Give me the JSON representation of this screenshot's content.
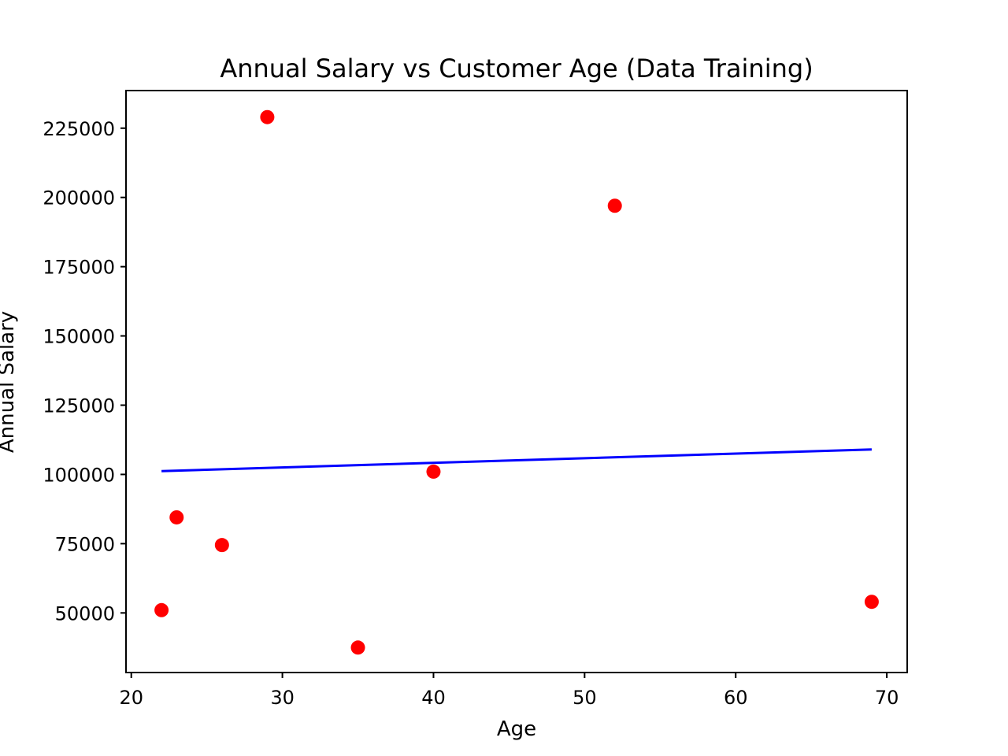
{
  "chart_data": {
    "type": "scatter",
    "title": "Annual Salary vs Customer Age (Data Training)",
    "xlabel": "Age",
    "ylabel": "Annual Salary",
    "xlim": [
      19.65,
      71.35
    ],
    "ylim": [
      28480,
      238580
    ],
    "xticks": [
      20,
      30,
      40,
      50,
      60,
      70
    ],
    "yticks": [
      50000,
      75000,
      100000,
      125000,
      150000,
      175000,
      200000,
      225000
    ],
    "grid": false,
    "colors": {
      "points": "#ff0000",
      "line": "#0000ff"
    },
    "series": [
      {
        "kind": "scatter",
        "x": [
          22,
          23,
          26,
          29,
          35,
          40,
          52,
          69
        ],
        "y": [
          51000,
          84500,
          74500,
          229000,
          37500,
          101000,
          197000,
          54000
        ]
      },
      {
        "kind": "line",
        "x": [
          22,
          69
        ],
        "y": [
          101200,
          109000
        ]
      }
    ]
  }
}
